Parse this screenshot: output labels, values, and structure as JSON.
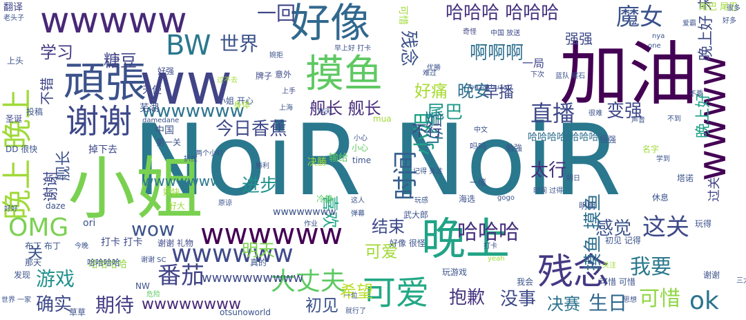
{
  "wordcloud": {
    "words": [
      {
        "text": "NoiR NoiR",
        "color": "#2a788e"
      },
      {
        "text": "小姐",
        "color": "#7ad151"
      },
      {
        "text": "加油",
        "color": "#440154"
      },
      {
        "text": "晚上",
        "color": "#20a386"
      },
      {
        "text": "ww",
        "color": "#414487"
      },
      {
        "text": "wwwww",
        "color": "#482878"
      },
      {
        "text": "好像",
        "color": "#31688e"
      },
      {
        "text": "摸鱼",
        "color": "#5ec962"
      },
      {
        "text": "晚上 晚上",
        "color": "#a0da39"
      },
      {
        "text": "頑張",
        "color": "#3b528b"
      },
      {
        "text": "wwww",
        "color": "#440154"
      },
      {
        "text": "残念",
        "color": "#443983"
      },
      {
        "text": "可爱",
        "color": "#22a884"
      },
      {
        "text": "谢谢",
        "color": "#3e4989"
      },
      {
        "text": "BW",
        "color": "#2a788e"
      },
      {
        "text": "魔女",
        "color": "#3b528b"
      },
      {
        "text": "哈哈哈 哈哈哈",
        "color": "#46327e"
      },
      {
        "text": "小姐",
        "color": "#1fa187"
      },
      {
        "text": "时间",
        "color": "#355f8d"
      },
      {
        "text": "OMG",
        "color": "#7ad151"
      },
      {
        "text": "wwwwww",
        "color": "#440154"
      },
      {
        "text": "wwwwww",
        "color": "#3e4a89"
      },
      {
        "text": "直播",
        "color": "#3e4989"
      },
      {
        "text": "世界",
        "color": "#3b528b"
      },
      {
        "text": "糖豆",
        "color": "#414487"
      },
      {
        "text": "学习",
        "color": "#443983"
      },
      {
        "text": "啊啊啊",
        "color": "#2e6f8e"
      },
      {
        "text": "好痛",
        "color": "#a8db34"
      },
      {
        "text": "晚安",
        "color": "#2e6e8e"
      },
      {
        "text": "舰长 舰长",
        "color": "#472d7b"
      },
      {
        "text": "番茄",
        "color": "#414487"
      },
      {
        "text": "大丈夫",
        "color": "#5ec962"
      },
      {
        "text": "wwwwwww",
        "color": "#2c738e"
      },
      {
        "text": "哈哈哈",
        "color": "#472f7d"
      },
      {
        "text": "这关",
        "color": "#3e4989"
      },
      {
        "text": "感觉",
        "color": "#3b528b"
      },
      {
        "text": "ok",
        "color": "#2c728e"
      },
      {
        "text": "可惜",
        "color": "#90d743"
      },
      {
        "text": "生日",
        "color": "#31688e"
      },
      {
        "text": "决赛",
        "color": "#2c728e"
      },
      {
        "text": "期待",
        "color": "#433e85"
      },
      {
        "text": "游戏",
        "color": "#21918c"
      },
      {
        "text": "确实",
        "color": "#3e4989"
      },
      {
        "text": "初见",
        "color": "#3b528b"
      },
      {
        "text": "wwwwwwww",
        "color": "#482878"
      },
      {
        "text": "wow",
        "color": "#3b528b"
      },
      {
        "text": "我要",
        "color": "#2a788e"
      },
      {
        "text": "抱歉",
        "color": "#46337f"
      },
      {
        "text": "没事",
        "color": "#3e4a89"
      },
      {
        "text": "变强",
        "color": "#3f4788"
      },
      {
        "text": "早播",
        "color": "#3f4788"
      },
      {
        "text": "尾巴",
        "color": "#1f988b"
      },
      {
        "text": "今日香蕉",
        "color": "#3e4989"
      },
      {
        "text": "进步",
        "color": "#21918c"
      },
      {
        "text": "太行",
        "color": "#472f7d"
      },
      {
        "text": "复仇",
        "color": "#2a788e"
      },
      {
        "text": "不行",
        "color": "#404688"
      },
      {
        "text": "结束",
        "color": "#3e4a89"
      },
      {
        "text": "喜欢",
        "color": "#20a486"
      },
      {
        "text": "明天",
        "color": "#7fd34e"
      },
      {
        "text": "希望",
        "color": "#b8de29"
      },
      {
        "text": "可爱",
        "color": "#a2da37"
      },
      {
        "text": "摸鱼 摸鱼",
        "color": "#2e6f8e"
      },
      {
        "text": "晚上好",
        "color": "#1fa187"
      },
      {
        "text": "一回",
        "color": "#404688"
      },
      {
        "text": "残念",
        "color": "#3b528b"
      },
      {
        "text": "强强",
        "color": "#3e4989"
      },
      {
        "text": "wwwwwww",
        "color": "#2a788e"
      },
      {
        "text": "wwwwwwww",
        "color": "#3b528b"
      },
      {
        "text": "舰长",
        "color": "#3b528b"
      },
      {
        "text": "谢谢",
        "color": "#3e4989"
      },
      {
        "text": "不错",
        "color": "#404688"
      },
      {
        "text": "关",
        "color": "#3b528b"
      },
      {
        "text": "哈哈哈哈",
        "color": "#90d743"
      },
      {
        "text": "一局",
        "color": "#404688"
      },
      {
        "text": "wwwwwwwwww",
        "color": "#3e4a89"
      },
      {
        "text": "哈哈哈哈 哈哈哈哈",
        "color": "#2e6f8e"
      },
      {
        "text": "可惜",
        "color": "#a0da39"
      },
      {
        "text": "过关",
        "color": "#404688"
      },
      {
        "text": "晚上好 来",
        "color": "#3e4989"
      },
      {
        "text": "小姐 开心",
        "color": "#3b528b"
      },
      {
        "text": "尾巴 尾巴",
        "color": "#a0da39"
      },
      {
        "text": "翻译",
        "color": "#414487"
      },
      {
        "text": "老头子",
        "color": "#3b528b"
      },
      {
        "text": "身体",
        "color": "#a0da39"
      },
      {
        "text": "奇怪",
        "color": "#414487"
      },
      {
        "text": "中国 放送",
        "color": "#3e4989"
      },
      {
        "text": "婉拒",
        "color": "#3b528b"
      },
      {
        "text": "早上好 打卡",
        "color": "#3b528b"
      },
      {
        "text": "上头",
        "color": "#3b528b"
      },
      {
        "text": "天使",
        "color": "#3e4989"
      },
      {
        "text": "好强",
        "color": "#3e4989"
      },
      {
        "text": "意外",
        "color": "#3e4989"
      },
      {
        "text": "牌子",
        "color": "#3e4989"
      },
      {
        "text": "芜湖",
        "color": "#3b528b"
      },
      {
        "text": "上手",
        "color": "#3e4989"
      },
      {
        "text": "下次",
        "color": "#3e4989"
      },
      {
        "text": "难过",
        "color": "#3b528b"
      },
      {
        "text": "蓝队 曜石",
        "color": "#3b528b"
      },
      {
        "text": "one",
        "color": "#3b528b"
      },
      {
        "text": "nya",
        "color": "#3b528b"
      },
      {
        "text": "buzai buzai",
        "color": "#3b528b"
      },
      {
        "text": "上海",
        "color": "#3b528b"
      },
      {
        "text": "中国",
        "color": "#3b528b"
      },
      {
        "text": "投稿",
        "color": "#3b528b"
      },
      {
        "text": "圣诞",
        "color": "#404688"
      },
      {
        "text": "优勝",
        "color": "#3b528b"
      },
      {
        "text": "声音",
        "color": "#3b528b"
      },
      {
        "text": "很难",
        "color": "#3b528b"
      },
      {
        "text": "不到",
        "color": "#3b528b"
      },
      {
        "text": "第一关",
        "color": "#3b528b"
      },
      {
        "text": "掉下去",
        "color": "#3e4989"
      },
      {
        "text": "决勝",
        "color": "#a0da39"
      },
      {
        "text": "小心",
        "color": "#5ec962"
      },
      {
        "text": "time",
        "color": "#3b528b"
      },
      {
        "text": "很强",
        "color": "#3b528b"
      },
      {
        "text": "学到",
        "color": "#3b528b"
      },
      {
        "text": "勉強",
        "color": "#3b528b"
      },
      {
        "text": "吗吗",
        "color": "#3b528b"
      },
      {
        "text": "名字",
        "color": "#a0da39"
      },
      {
        "text": "两个小时",
        "color": "#3b528b"
      },
      {
        "text": "输给",
        "color": "#5ec962"
      },
      {
        "text": "勝利",
        "color": "#3b528b"
      },
      {
        "text": "扒拉",
        "color": "#3b528b"
      },
      {
        "text": "塔诺",
        "color": "#3b528b"
      },
      {
        "text": "记得 关注",
        "color": "#3b528b"
      },
      {
        "text": "一绪",
        "color": "#3b528b"
      },
      {
        "text": "海选",
        "color": "#3b528b"
      },
      {
        "text": "明日",
        "color": "#3b528b"
      },
      {
        "text": "时间 过得",
        "color": "#3b528b"
      },
      {
        "text": "daze",
        "color": "#3b528b"
      },
      {
        "text": "好好",
        "color": "#3b528b"
      },
      {
        "text": "好快",
        "color": "#a0da39"
      },
      {
        "text": "冷静",
        "color": "#5ec962"
      },
      {
        "text": "这人",
        "color": "#3b528b"
      },
      {
        "text": "原谅",
        "color": "#3b528b"
      },
      {
        "text": "好大",
        "color": "#a0da39"
      },
      {
        "text": "ori",
        "color": "#3b528b"
      },
      {
        "text": "作业",
        "color": "#3b528b"
      },
      {
        "text": "弹幕",
        "color": "#3b528b"
      },
      {
        "text": "武大郎",
        "color": "#3b528b"
      },
      {
        "text": "gogo",
        "color": "#3b528b"
      },
      {
        "text": "明明",
        "color": "#3b528b"
      },
      {
        "text": "休息",
        "color": "#3b528b"
      },
      {
        "text": "玩得",
        "color": "#3b528b"
      },
      {
        "text": "谢谢 礼物",
        "color": "#3e4989"
      },
      {
        "text": "打卡 打卡",
        "color": "#3e4989"
      },
      {
        "text": "布丁 布丁",
        "color": "#3b528b"
      },
      {
        "text": "今晚",
        "color": "#3b528b"
      },
      {
        "text": "好像 很怪",
        "color": "#3b528b"
      },
      {
        "text": "初见 记得",
        "color": "#3b528b"
      },
      {
        "text": "那天",
        "color": "#3b528b"
      },
      {
        "text": "谢谢 SC",
        "color": "#3b528b"
      },
      {
        "text": "哈哈哈哈",
        "color": "#3b528b"
      },
      {
        "text": "发现",
        "color": "#3b528b"
      },
      {
        "text": "真的",
        "color": "#3b528b"
      },
      {
        "text": "玩游戏",
        "color": "#3b528b"
      },
      {
        "text": "可惜 可惜",
        "color": "#3b528b"
      },
      {
        "text": "谢谢",
        "color": "#3b528b"
      },
      {
        "text": "NW",
        "color": "#3b528b"
      },
      {
        "text": "危险",
        "color": "#5ec962"
      },
      {
        "text": "我会",
        "color": "#3b528b"
      },
      {
        "text": "otsunoworld",
        "color": "#3b528b"
      },
      {
        "text": "草草",
        "color": "#3b528b"
      },
      {
        "text": "就行了",
        "color": "#3b528b"
      },
      {
        "text": "好多",
        "color": "#3b528b"
      },
      {
        "text": "关注",
        "color": "#a0da39"
      },
      {
        "text": "思想",
        "color": "#3b528b"
      },
      {
        "text": "三大 輩 好",
        "color": "#3b528b"
      },
      {
        "text": "爱霸",
        "color": "#3b528b"
      },
      {
        "text": "一位",
        "color": "#3b528b"
      },
      {
        "text": "打卡",
        "color": "#3b528b"
      },
      {
        "text": "mua",
        "color": "#a0da39"
      },
      {
        "text": "damedane",
        "color": "#3b528b"
      },
      {
        "text": "DD 很快",
        "color": "#3b528b"
      },
      {
        "text": "yeah",
        "color": "#a0da39"
      },
      {
        "text": "玩感",
        "color": "#3b528b"
      },
      {
        "text": "过不去",
        "color": "#a0da39"
      },
      {
        "text": "不要",
        "color": "#3b528b"
      },
      {
        "text": "昨天",
        "color": "#3b528b"
      },
      {
        "text": "中文",
        "color": "#3b528b"
      },
      {
        "text": "小心",
        "color": "#3b528b"
      },
      {
        "text": "世界 一家",
        "color": "#3b528b"
      },
      {
        "text": "很多",
        "color": "#3b528b"
      }
    ]
  }
}
